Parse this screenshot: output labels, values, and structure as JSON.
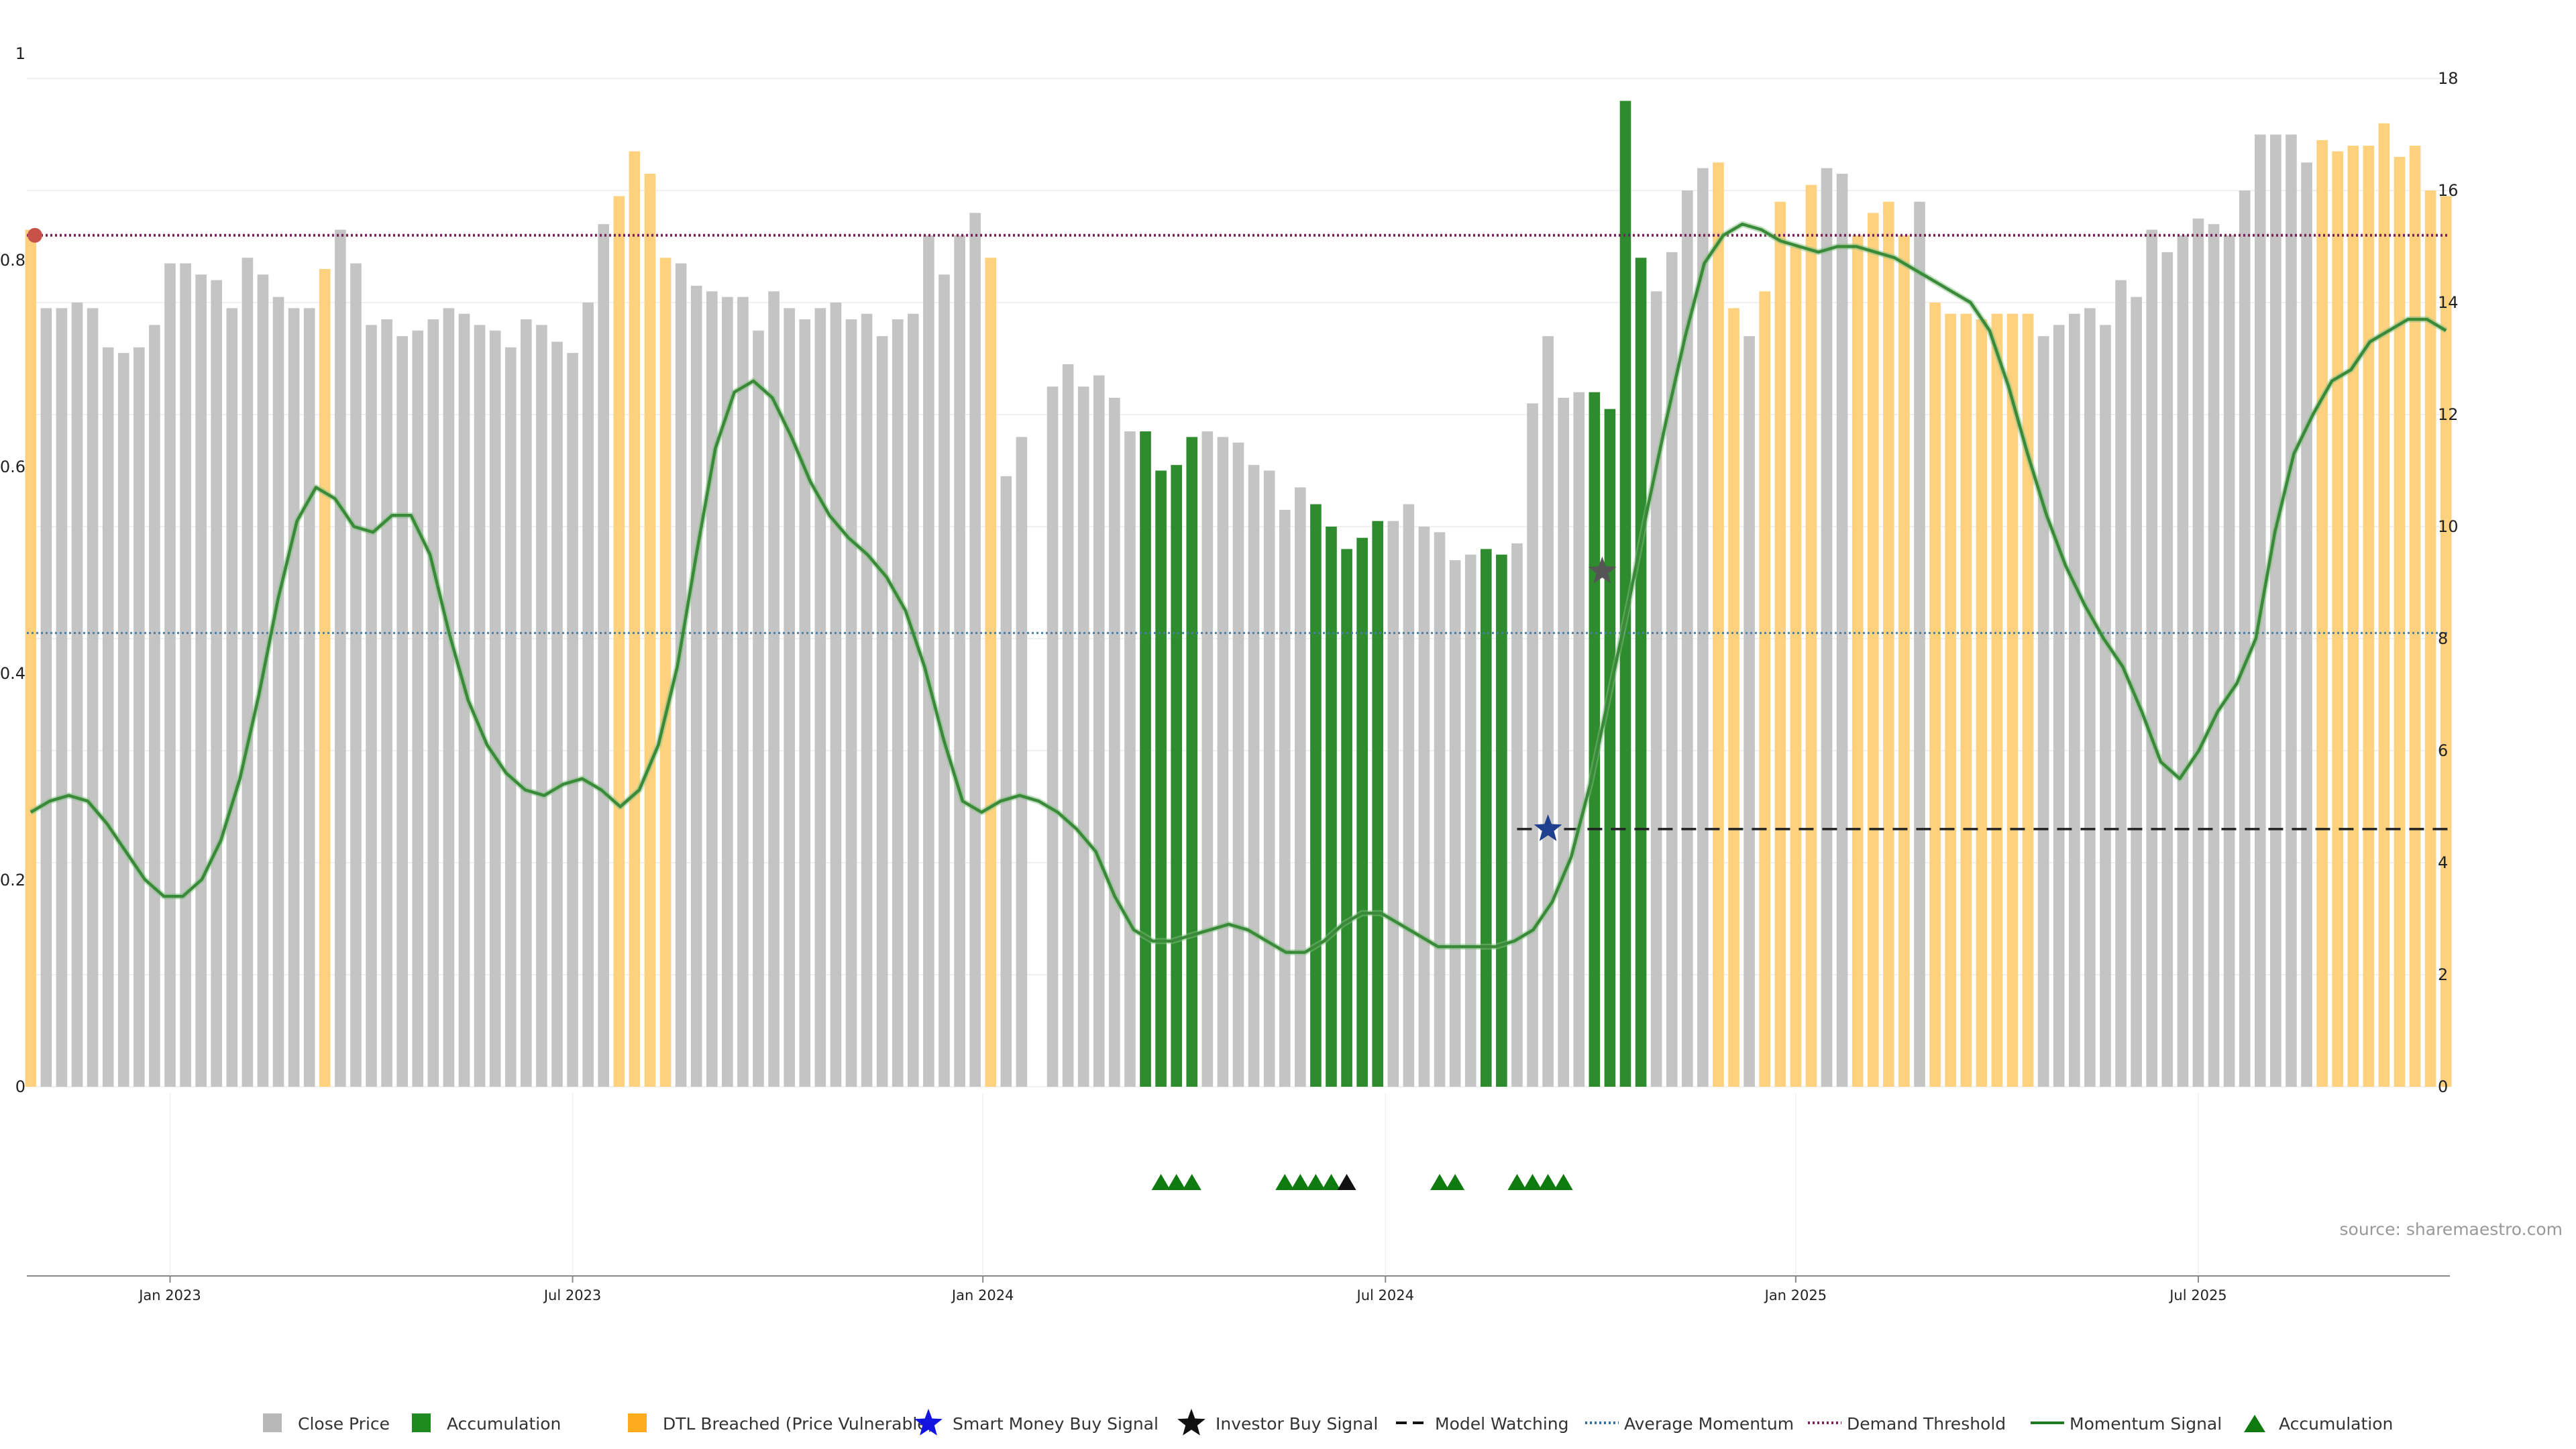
{
  "chart_data": {
    "type": "bar",
    "title": "",
    "source": "source: sharemaestro.com",
    "y_left": {
      "ticks": [
        "0",
        "0.2",
        "0.4",
        "0.6",
        "0.8",
        "1"
      ],
      "range": [
        0,
        1
      ]
    },
    "y_right": {
      "ticks": [
        "0",
        "2",
        "4",
        "6",
        "8",
        "10",
        "12",
        "14",
        "16",
        "18"
      ],
      "range": [
        0,
        18
      ]
    },
    "x_ticks": [
      "Jan 2023",
      "Jul 2023",
      "Jan 2024",
      "Jul 2024",
      "Jan 2025",
      "Jul 2025"
    ],
    "x_tick_weeks": [
      9,
      35,
      61.5,
      87.5,
      114,
      140
    ],
    "colors": {
      "close_price": "#c4c4c4",
      "accumulation": "#2e8b2e",
      "dtl_breached": "#fdd17e",
      "momentum": "#3a8a3a",
      "average_momentum": "#4a7fa8",
      "demand_threshold": "#7a1f5c",
      "model_watching": "#222222",
      "smart_money": "#1f3f8f",
      "investor": "#555555"
    },
    "series": [
      {
        "name": "Close Price",
        "type": "bar",
        "values_note": "weekly bars; status codes: g=close price, a=accumulation, d=DTL breached",
        "values": [
          15.3,
          13.9,
          13.9,
          14.0,
          13.9,
          13.2,
          13.1,
          13.2,
          13.6,
          14.7,
          14.7,
          14.5,
          14.4,
          13.9,
          14.8,
          14.5,
          14.1,
          13.9,
          13.9,
          14.6,
          15.3,
          14.7,
          13.6,
          13.7,
          13.4,
          13.5,
          13.7,
          13.9,
          13.8,
          13.6,
          13.5,
          13.2,
          13.7,
          13.6,
          13.3,
          13.1,
          14.0,
          15.4,
          15.9,
          16.7,
          16.3,
          14.8,
          14.7,
          14.3,
          14.2,
          14.1,
          14.1,
          13.5,
          14.2,
          13.9,
          13.7,
          13.9,
          14.0,
          13.7,
          13.8,
          13.4,
          13.7,
          13.8,
          15.2,
          14.5,
          15.2,
          15.6,
          14.8,
          10.9,
          11.6,
          0,
          12.5,
          12.9,
          12.5,
          12.7,
          12.3,
          11.7,
          11.7,
          11.0,
          11.1,
          11.6,
          11.7,
          11.6,
          11.5,
          11.1,
          11.0,
          10.3,
          10.7,
          10.4,
          10.0,
          9.6,
          9.8,
          10.1,
          10.1,
          10.4,
          10.0,
          9.9,
          9.4,
          9.5,
          9.6,
          9.5,
          9.7,
          12.2,
          13.4,
          12.3,
          12.4,
          12.4,
          12.1,
          17.6,
          14.8,
          14.2,
          14.9,
          16.0,
          16.4,
          16.5,
          13.9,
          13.4,
          14.2,
          15.8,
          15.0,
          16.1,
          16.4,
          16.3,
          15.2,
          15.6,
          15.8,
          15.2,
          15.8,
          14.0,
          13.8,
          13.8,
          13.7,
          13.8,
          13.8,
          13.8,
          13.4,
          13.6,
          13.8,
          13.9,
          13.6,
          14.4,
          14.1,
          15.3,
          14.9,
          15.2,
          15.5,
          15.4,
          15.2,
          16.0,
          17.0,
          17.0,
          17.0,
          16.5,
          16.9,
          16.7,
          16.8,
          16.8,
          17.2,
          16.6,
          16.8,
          16.0,
          15.9
        ],
        "status": "dggggggggggggggggggdggggggggggggggggggddddggggggggggggggggggggdgggggggggaaaagggggggaaaaaggggggaagggggaaaaggggddgddddggddddgdddddddggggggggggggggggggdddddddddddddddd"
      },
      {
        "name": "Momentum Signal",
        "type": "line",
        "values": [
          4.9,
          5.1,
          5.2,
          5.1,
          4.7,
          4.2,
          3.7,
          3.4,
          3.4,
          3.7,
          4.4,
          5.5,
          7.0,
          8.7,
          10.1,
          10.7,
          10.5,
          10.0,
          9.9,
          10.2,
          10.2,
          9.5,
          8.1,
          6.9,
          6.1,
          5.6,
          5.3,
          5.2,
          5.4,
          5.5,
          5.3,
          5.0,
          5.3,
          6.1,
          7.5,
          9.5,
          11.4,
          12.4,
          12.6,
          12.3,
          11.6,
          10.8,
          10.2,
          9.8,
          9.5,
          9.1,
          8.5,
          7.5,
          6.2,
          5.1,
          4.9,
          5.1,
          5.2,
          5.1,
          4.9,
          4.6,
          4.2,
          3.4,
          2.8,
          2.6,
          2.6,
          2.7,
          2.8,
          2.9,
          2.8,
          2.6,
          2.4,
          2.4,
          2.6,
          2.9,
          3.1,
          3.1,
          2.9,
          2.7,
          2.5,
          2.5,
          2.5,
          2.5,
          2.6,
          2.8,
          3.3,
          4.1,
          5.4,
          7.0,
          8.6,
          10.3,
          11.9,
          13.4,
          14.7,
          15.2,
          15.4,
          15.3,
          15.1,
          15.0,
          14.9,
          15.0,
          15.0,
          14.9,
          14.8,
          14.6,
          14.4,
          14.2,
          14.0,
          13.5,
          12.5,
          11.3,
          10.2,
          9.3,
          8.6,
          8.0,
          7.5,
          6.7,
          5.8,
          5.5,
          6.0,
          6.7,
          7.2,
          8.0,
          9.9,
          11.3,
          12.0,
          12.6,
          12.8,
          13.3,
          13.5,
          13.7,
          13.7,
          13.5
        ]
      },
      {
        "name": "Average Momentum",
        "type": "line",
        "values": [
          8.1
        ]
      },
      {
        "name": "Demand Threshold",
        "type": "line",
        "values": [
          15.2
        ]
      },
      {
        "name": "Model Watching",
        "type": "line",
        "values": [
          4.6
        ],
        "x_start_week": 96
      },
      {
        "name": "Smart Money Buy Signal",
        "type": "scatter",
        "points": [
          {
            "x": 98,
            "y": 4.6
          }
        ]
      },
      {
        "name": "Investor Buy Signal",
        "type": "scatter",
        "points": [
          {
            "x": 101.5,
            "y": 9.2
          }
        ]
      },
      {
        "name": "Accumulation",
        "type": "scatter",
        "markers": [
          {
            "x": 73,
            "kind": "accumulation"
          },
          {
            "x": 74,
            "kind": "accumulation"
          },
          {
            "x": 75,
            "kind": "accumulation"
          },
          {
            "x": 81,
            "kind": "accumulation"
          },
          {
            "x": 82,
            "kind": "accumulation"
          },
          {
            "x": 83,
            "kind": "accumulation"
          },
          {
            "x": 84,
            "kind": "accumulation"
          },
          {
            "x": 85,
            "kind": "investor"
          },
          {
            "x": 91,
            "kind": "accumulation"
          },
          {
            "x": 92,
            "kind": "accumulation"
          },
          {
            "x": 96,
            "kind": "accumulation"
          },
          {
            "x": 97,
            "kind": "accumulation"
          },
          {
            "x": 98,
            "kind": "accumulation"
          },
          {
            "x": 99,
            "kind": "accumulation"
          }
        ]
      }
    ],
    "legend": {
      "position": "bottom",
      "items": [
        {
          "label": "Close Price",
          "symbol": "square",
          "color": "#b8b8b8"
        },
        {
          "label": "Accumulation",
          "symbol": "square",
          "color": "#1f8a1f"
        },
        {
          "label": "DTL Breached (Price Vulnerable)",
          "symbol": "square",
          "color": "#ffad1f"
        },
        {
          "label": "Smart Money Buy Signal",
          "symbol": "star",
          "color": "#1414e0"
        },
        {
          "label": "Investor Buy Signal",
          "symbol": "star",
          "color": "#111111"
        },
        {
          "label": "Model Watching",
          "symbol": "dash",
          "color": "#111111"
        },
        {
          "label": "Average Momentum",
          "symbol": "dotted",
          "color": "#2f6fa8"
        },
        {
          "label": "Demand Threshold",
          "symbol": "dotted",
          "color": "#7a1f5c"
        },
        {
          "label": "Momentum Signal",
          "symbol": "line",
          "color": "#1f7a1f"
        },
        {
          "label": "Accumulation",
          "symbol": "triangle",
          "color": "#0f7a0f"
        }
      ]
    }
  }
}
